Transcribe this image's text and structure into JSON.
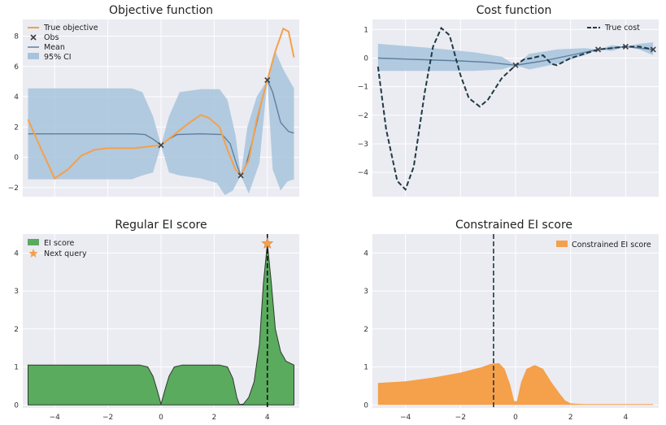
{
  "colors": {
    "orange": "#f5a04a",
    "band": "#a7c4dc",
    "mean": "#5e7f9f",
    "dark": "#1f3a44",
    "green": "#5aab5e",
    "obs": "#3a4048"
  },
  "chart_data": [
    {
      "type": "line",
      "title": "Objective function",
      "xlim": [
        -5.2,
        5.2
      ],
      "ylim": [
        -2.6,
        9.1
      ],
      "xticks": [
        -4,
        -2,
        0,
        2,
        4
      ],
      "yticks": [
        -2,
        0,
        2,
        4,
        6,
        8
      ],
      "xticklabels": [
        "",
        "",
        "",
        "",
        ""
      ],
      "yticklabels": [
        "−2",
        "0",
        "2",
        "4",
        "6",
        "8"
      ],
      "legend": [
        "True objective",
        "Obs",
        "Mean",
        "95% CI"
      ],
      "legend_position": "top-left",
      "obs": [
        [
          0,
          0.8
        ],
        [
          3,
          -1.2
        ],
        [
          4,
          5.1
        ]
      ],
      "true_objective": [
        [
          -5,
          2.5
        ],
        [
          -4.5,
          0.5
        ],
        [
          -4,
          -1.4
        ],
        [
          -3.5,
          -0.8
        ],
        [
          -3,
          0.1
        ],
        [
          -2.5,
          0.5
        ],
        [
          -2,
          0.6
        ],
        [
          -1,
          0.6
        ],
        [
          -0.5,
          0.7
        ],
        [
          0,
          0.8
        ],
        [
          0.5,
          1.5
        ],
        [
          1,
          2.2
        ],
        [
          1.5,
          2.8
        ],
        [
          1.8,
          2.6
        ],
        [
          2.2,
          2.0
        ],
        [
          2.5,
          0.5
        ],
        [
          2.8,
          -0.8
        ],
        [
          3,
          -1.2
        ],
        [
          3.3,
          -0.2
        ],
        [
          3.6,
          2.5
        ],
        [
          4,
          5.1
        ],
        [
          4.3,
          7.0
        ],
        [
          4.6,
          8.5
        ],
        [
          4.8,
          8.3
        ],
        [
          5,
          6.6
        ]
      ],
      "mean": [
        [
          -5,
          1.55
        ],
        [
          -1.0,
          1.55
        ],
        [
          -0.6,
          1.5
        ],
        [
          -0.3,
          1.2
        ],
        [
          0,
          0.8
        ],
        [
          0.3,
          1.2
        ],
        [
          0.6,
          1.5
        ],
        [
          1.5,
          1.55
        ],
        [
          2.3,
          1.5
        ],
        [
          2.6,
          0.9
        ],
        [
          2.85,
          -0.5
        ],
        [
          3,
          -1.2
        ],
        [
          3.2,
          -0.5
        ],
        [
          3.5,
          1.5
        ],
        [
          3.8,
          3.8
        ],
        [
          4,
          5.1
        ],
        [
          4.2,
          4.3
        ],
        [
          4.5,
          2.3
        ],
        [
          4.8,
          1.7
        ],
        [
          5,
          1.6
        ]
      ],
      "ci_upper": [
        [
          -5,
          4.55
        ],
        [
          -1.1,
          4.55
        ],
        [
          -0.7,
          4.3
        ],
        [
          -0.3,
          2.7
        ],
        [
          0,
          0.8
        ],
        [
          0.3,
          2.7
        ],
        [
          0.7,
          4.3
        ],
        [
          1.5,
          4.5
        ],
        [
          2.2,
          4.5
        ],
        [
          2.5,
          3.8
        ],
        [
          2.8,
          1.5
        ],
        [
          3,
          -1.2
        ],
        [
          3.25,
          2.0
        ],
        [
          3.6,
          4.0
        ],
        [
          4,
          5.1
        ],
        [
          4.3,
          7.0
        ],
        [
          4.6,
          5.8
        ],
        [
          5,
          4.55
        ]
      ],
      "ci_lower": [
        [
          -5,
          -1.45
        ],
        [
          -1.1,
          -1.45
        ],
        [
          -0.7,
          -1.2
        ],
        [
          -0.3,
          -1.0
        ],
        [
          0,
          0.8
        ],
        [
          0.3,
          -1.0
        ],
        [
          0.7,
          -1.2
        ],
        [
          1.5,
          -1.4
        ],
        [
          2.1,
          -1.7
        ],
        [
          2.4,
          -2.5
        ],
        [
          2.7,
          -2.2
        ],
        [
          3,
          -1.2
        ],
        [
          3.3,
          -2.4
        ],
        [
          3.7,
          -0.4
        ],
        [
          4,
          5.1
        ],
        [
          4.2,
          -0.8
        ],
        [
          4.5,
          -2.2
        ],
        [
          4.75,
          -1.6
        ],
        [
          5,
          -1.45
        ]
      ]
    },
    {
      "type": "line",
      "title": "Cost function",
      "xlim": [
        -5.2,
        5.2
      ],
      "ylim": [
        -4.85,
        1.35
      ],
      "xticks": [
        -4,
        -2,
        0,
        2,
        4
      ],
      "yticks": [
        -4,
        -3,
        -2,
        -1,
        0,
        1
      ],
      "xticklabels": [
        "",
        "",
        "",
        "",
        ""
      ],
      "yticklabels": [
        "−4",
        "−3",
        "−2",
        "−1",
        "0",
        "1"
      ],
      "legend": [
        "True cost"
      ],
      "legend_position": "top-right",
      "obs": [
        [
          0,
          -0.25
        ],
        [
          3,
          0.3
        ],
        [
          4,
          0.4
        ],
        [
          5,
          0.3
        ]
      ],
      "true_cost": [
        [
          -5,
          -0.3
        ],
        [
          -4.7,
          -2.5
        ],
        [
          -4.3,
          -4.3
        ],
        [
          -4,
          -4.6
        ],
        [
          -3.7,
          -3.8
        ],
        [
          -3.3,
          -1.2
        ],
        [
          -3,
          0.4
        ],
        [
          -2.7,
          1.05
        ],
        [
          -2.4,
          0.8
        ],
        [
          -2,
          -0.6
        ],
        [
          -1.7,
          -1.4
        ],
        [
          -1.3,
          -1.7
        ],
        [
          -1,
          -1.45
        ],
        [
          -0.5,
          -0.7
        ],
        [
          0,
          -0.25
        ],
        [
          0.3,
          -0.05
        ],
        [
          0.6,
          0.0
        ],
        [
          1,
          0.1
        ],
        [
          1.3,
          -0.2
        ],
        [
          1.5,
          -0.25
        ],
        [
          2,
          0.0
        ],
        [
          2.5,
          0.15
        ],
        [
          3,
          0.3
        ],
        [
          3.5,
          0.35
        ],
        [
          4,
          0.4
        ],
        [
          4.5,
          0.4
        ],
        [
          5,
          0.3
        ]
      ],
      "mean": [
        [
          -5,
          0.0
        ],
        [
          -2,
          -0.1
        ],
        [
          -1,
          -0.15
        ],
        [
          0,
          -0.25
        ],
        [
          1,
          -0.1
        ],
        [
          2,
          0.1
        ],
        [
          3,
          0.3
        ],
        [
          4,
          0.4
        ],
        [
          5,
          0.3
        ]
      ],
      "ci_upper": [
        [
          -5,
          0.5
        ],
        [
          -3,
          0.35
        ],
        [
          -1.5,
          0.2
        ],
        [
          -0.5,
          0.05
        ],
        [
          0,
          -0.25
        ],
        [
          0.5,
          0.15
        ],
        [
          1.5,
          0.3
        ],
        [
          2.5,
          0.35
        ],
        [
          3,
          0.3
        ],
        [
          3.5,
          0.45
        ],
        [
          4,
          0.4
        ],
        [
          4.5,
          0.5
        ],
        [
          5,
          0.55
        ]
      ],
      "ci_lower": [
        [
          -5,
          -0.45
        ],
        [
          -3,
          -0.45
        ],
        [
          -1.5,
          -0.45
        ],
        [
          -0.5,
          -0.4
        ],
        [
          0,
          -0.25
        ],
        [
          0.5,
          -0.4
        ],
        [
          1.5,
          -0.2
        ],
        [
          2.5,
          0.1
        ],
        [
          3,
          0.3
        ],
        [
          3.5,
          0.25
        ],
        [
          4,
          0.4
        ],
        [
          4.5,
          0.3
        ],
        [
          5,
          0.1
        ]
      ]
    },
    {
      "type": "area",
      "title": "Regular EI score",
      "xlim": [
        -5.2,
        5.2
      ],
      "ylim": [
        -0.08,
        4.5
      ],
      "xticks": [
        -4,
        -2,
        0,
        2,
        4
      ],
      "yticks": [
        0,
        1,
        2,
        3,
        4
      ],
      "xticklabels": [
        "−4",
        "−2",
        "0",
        "2",
        "4"
      ],
      "yticklabels": [
        "0",
        "1",
        "2",
        "3",
        "4"
      ],
      "legend": [
        "EI score",
        "Next query"
      ],
      "legend_position": "top-left",
      "next_query": [
        4,
        4.25
      ],
      "vline_x": 4,
      "ei": [
        [
          -5,
          1.05
        ],
        [
          -0.8,
          1.05
        ],
        [
          -0.5,
          1.0
        ],
        [
          -0.3,
          0.75
        ],
        [
          -0.15,
          0.4
        ],
        [
          0,
          0.02
        ],
        [
          0.15,
          0.4
        ],
        [
          0.3,
          0.75
        ],
        [
          0.5,
          1.0
        ],
        [
          0.8,
          1.05
        ],
        [
          2.2,
          1.05
        ],
        [
          2.5,
          1.0
        ],
        [
          2.7,
          0.7
        ],
        [
          2.85,
          0.2
        ],
        [
          2.95,
          0.01
        ],
        [
          3.1,
          0.02
        ],
        [
          3.3,
          0.2
        ],
        [
          3.5,
          0.6
        ],
        [
          3.7,
          1.6
        ],
        [
          3.85,
          3.2
        ],
        [
          4,
          4.25
        ],
        [
          4.15,
          3.2
        ],
        [
          4.3,
          2.0
        ],
        [
          4.5,
          1.4
        ],
        [
          4.7,
          1.15
        ],
        [
          5,
          1.05
        ]
      ]
    },
    {
      "type": "area",
      "title": "Constrained EI score",
      "xlim": [
        -5.2,
        5.2
      ],
      "ylim": [
        -0.08,
        4.5
      ],
      "xticks": [
        -4,
        -2,
        0,
        2,
        4
      ],
      "yticks": [
        0,
        1,
        2,
        3,
        4
      ],
      "xticklabels": [
        "−4",
        "−2",
        "0",
        "2",
        "4"
      ],
      "yticklabels": [
        "0",
        "1",
        "2",
        "3",
        "4"
      ],
      "legend": [
        "Constrained EI score"
      ],
      "legend_position": "top-right",
      "vline_x": -0.8,
      "cei": [
        [
          -5,
          0.58
        ],
        [
          -4,
          0.62
        ],
        [
          -3,
          0.72
        ],
        [
          -2,
          0.85
        ],
        [
          -1.2,
          1.0
        ],
        [
          -0.9,
          1.08
        ],
        [
          -0.6,
          1.1
        ],
        [
          -0.4,
          0.95
        ],
        [
          -0.2,
          0.55
        ],
        [
          -0.05,
          0.1
        ],
        [
          0.05,
          0.1
        ],
        [
          0.2,
          0.6
        ],
        [
          0.4,
          0.95
        ],
        [
          0.7,
          1.05
        ],
        [
          1.0,
          0.95
        ],
        [
          1.3,
          0.6
        ],
        [
          1.6,
          0.3
        ],
        [
          1.8,
          0.12
        ],
        [
          2.0,
          0.04
        ],
        [
          2.5,
          0.02
        ],
        [
          5,
          0.02
        ]
      ]
    }
  ]
}
